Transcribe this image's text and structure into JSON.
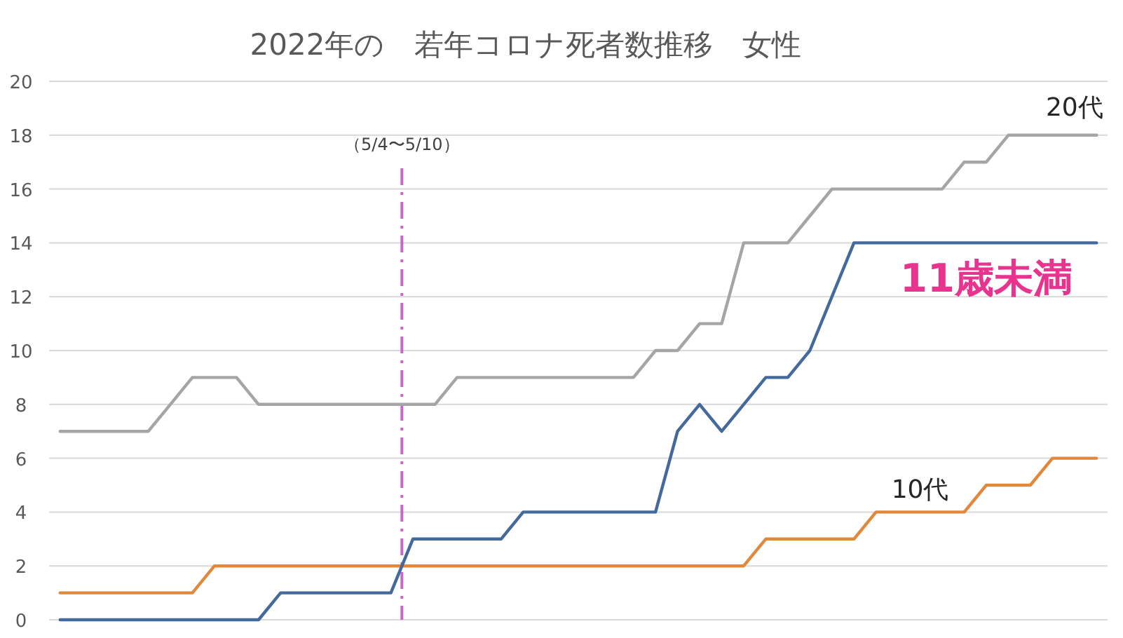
{
  "chart_data": {
    "type": "line",
    "title": "2022年の　若年コロナ死者数推移　女性",
    "categories": [
      null,
      null,
      null,
      null,
      null,
      null,
      null,
      null,
      null,
      null,
      null,
      null,
      null,
      null,
      null,
      null,
      null,
      null,
      null,
      null,
      null,
      null,
      null,
      null,
      null,
      null,
      null,
      null,
      null,
      null,
      null,
      null,
      null,
      null,
      null,
      null,
      null,
      null,
      null,
      null,
      null,
      null,
      null,
      null,
      null,
      null,
      null,
      null
    ],
    "series": [
      {
        "name": "20代",
        "color": "#a5a5a5",
        "values": [
          7,
          7,
          7,
          7,
          7,
          8,
          9,
          9,
          9,
          8,
          8,
          8,
          8,
          8,
          8,
          8,
          8,
          8,
          9,
          9,
          9,
          9,
          9,
          9,
          9,
          9,
          9,
          10,
          10,
          11,
          11,
          14,
          14,
          14,
          15,
          16,
          16,
          16,
          16,
          16,
          16,
          17,
          17,
          18,
          18,
          18,
          18,
          18
        ]
      },
      {
        "name": "10代",
        "color": "#e0893c",
        "values": [
          1,
          1,
          1,
          1,
          1,
          1,
          1,
          2,
          2,
          2,
          2,
          2,
          2,
          2,
          2,
          2,
          2,
          2,
          2,
          2,
          2,
          2,
          2,
          2,
          2,
          2,
          2,
          2,
          2,
          2,
          2,
          2,
          3,
          3,
          3,
          3,
          3,
          4,
          4,
          4,
          4,
          4,
          5,
          5,
          5,
          6,
          6,
          6
        ]
      },
      {
        "name": "11歳未満",
        "color": "#44699c",
        "values": [
          0,
          0,
          0,
          0,
          0,
          0,
          0,
          0,
          0,
          0,
          1,
          1,
          1,
          1,
          1,
          1,
          3,
          3,
          3,
          3,
          3,
          4,
          4,
          4,
          4,
          4,
          4,
          4,
          7,
          8,
          7,
          8,
          9,
          9,
          10,
          12,
          14,
          14,
          14,
          14,
          14,
          14,
          14,
          14,
          14,
          14,
          14,
          14
        ]
      }
    ],
    "ylim": [
      0,
      20
    ],
    "yticks": [
      0,
      2,
      4,
      6,
      8,
      10,
      12,
      14,
      16,
      18,
      20
    ],
    "grid": "y",
    "tick_labels": "y",
    "annotations": [
      "（5/4〜5/10）"
    ]
  }
}
